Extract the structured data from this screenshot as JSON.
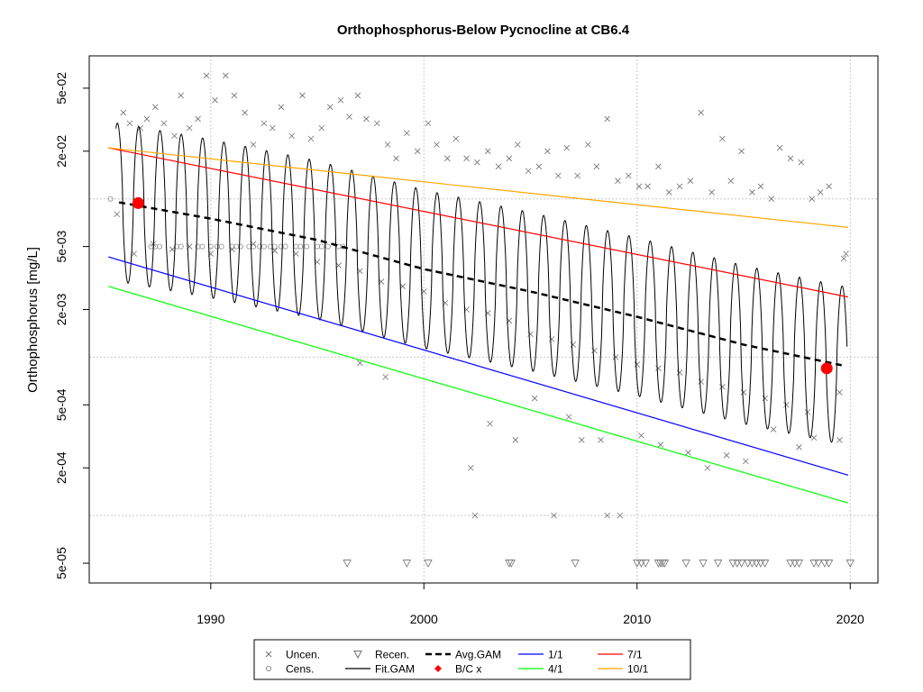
{
  "chart_data": {
    "type": "line",
    "title": "Orthophosphorus-Below Pycnocline at CB6.4",
    "xlabel": "",
    "ylabel": "Orthophosphorus [mg/L]",
    "y_scale": "log",
    "xlim": [
      1984.3,
      2021.3
    ],
    "ylim": [
      3.75e-05,
      0.08
    ],
    "x_ticks": [
      1990,
      2000,
      2010,
      2020
    ],
    "x_tick_labels": [
      "1990",
      "2000",
      "2010",
      "2020"
    ],
    "y_ticks": [
      5e-05,
      0.0002,
      0.0005,
      0.002,
      0.005,
      0.02,
      0.05
    ],
    "y_tick_labels": [
      "5e-05",
      "2e-04",
      "5e-04",
      "2e-03",
      "5e-03",
      "2e-02",
      "5e-02"
    ],
    "y_grid": [
      0.0001,
      0.001,
      0.01
    ],
    "grid": true,
    "legend_position": "bottom",
    "legend": [
      {
        "label": "Uncen.",
        "kind": "x-marker"
      },
      {
        "label": "Recen.",
        "kind": "triangle-marker"
      },
      {
        "label": "Avg.GAM",
        "kind": "dashed-line"
      },
      {
        "label": "1/1",
        "kind": "line",
        "color": "#0000ff"
      },
      {
        "label": "7/1",
        "kind": "line",
        "color": "#ff0000"
      },
      {
        "label": "Cens.",
        "kind": "circle-marker"
      },
      {
        "label": "Fit.GAM",
        "kind": "line",
        "color": "#000000"
      },
      {
        "label": "B/C x",
        "kind": "dot-marker",
        "color": "#ff0000"
      },
      {
        "label": "4/1",
        "kind": "line",
        "color": "#00ff00"
      },
      {
        "label": "10/1",
        "kind": "line",
        "color": "#ffa500"
      }
    ],
    "series": [
      {
        "name": "1/1",
        "color": "#0000ff",
        "x": [
          1985.2,
          2019.9
        ],
        "y": [
          0.0043,
          0.00018
        ]
      },
      {
        "name": "4/1",
        "color": "#00ff00",
        "x": [
          1985.2,
          2019.9
        ],
        "y": [
          0.0028,
          0.00012
        ]
      },
      {
        "name": "7/1",
        "color": "#ff0000",
        "x": [
          1985.2,
          2019.9
        ],
        "y": [
          0.021,
          0.0024
        ]
      },
      {
        "name": "10/1",
        "color": "#ffa500",
        "x": [
          1985.2,
          2019.9
        ],
        "y": [
          0.021,
          0.0066
        ]
      },
      {
        "name": "Avg.GAM",
        "color": "#000000",
        "x": [
          1985.7,
          1990,
          1995,
          2000,
          2005,
          2010,
          2015,
          2019.6
        ],
        "y": [
          0.0095,
          0.0075,
          0.0055,
          0.0036,
          0.0026,
          0.0018,
          0.0012,
          0.00089
        ]
      },
      {
        "name": "Fit.GAM",
        "color": "#000000",
        "description": "seasonal oscillation: annual peak ~3.2x Avg.GAM in late summer, trough ~0.32x Avg.GAM in spring"
      },
      {
        "name": "B/C x",
        "color": "#ff0000",
        "x": [
          1986.6,
          2018.9
        ],
        "y": [
          0.0094,
          0.00085
        ]
      }
    ],
    "uncensored_points": [
      [
        1985.9,
        0.035
      ],
      [
        1986.2,
        0.03
      ],
      [
        1986.7,
        0.028
      ],
      [
        1987.0,
        0.032
      ],
      [
        1987.4,
        0.038
      ],
      [
        1987.8,
        0.03
      ],
      [
        1988.3,
        0.025
      ],
      [
        1988.6,
        0.045
      ],
      [
        1989.0,
        0.028
      ],
      [
        1989.4,
        0.032
      ],
      [
        1989.8,
        0.06
      ],
      [
        1990.2,
        0.042
      ],
      [
        1990.7,
        0.06
      ],
      [
        1991.1,
        0.045
      ],
      [
        1991.6,
        0.035
      ],
      [
        1992.0,
        0.022
      ],
      [
        1992.5,
        0.03
      ],
      [
        1992.9,
        0.028
      ],
      [
        1993.3,
        0.038
      ],
      [
        1993.8,
        0.025
      ],
      [
        1994.3,
        0.045
      ],
      [
        1994.7,
        0.024
      ],
      [
        1995.2,
        0.028
      ],
      [
        1995.6,
        0.038
      ],
      [
        1996.1,
        0.042
      ],
      [
        1996.5,
        0.033
      ],
      [
        1996.9,
        0.045
      ],
      [
        1997.3,
        0.032
      ],
      [
        1997.8,
        0.03
      ],
      [
        1998.3,
        0.022
      ],
      [
        1998.7,
        0.018
      ],
      [
        1999.2,
        0.026
      ],
      [
        1999.7,
        0.02
      ],
      [
        2000.2,
        0.03
      ],
      [
        2000.6,
        0.022
      ],
      [
        2001.1,
        0.018
      ],
      [
        2001.5,
        0.024
      ],
      [
        2002.0,
        0.018
      ],
      [
        2002.5,
        0.017
      ],
      [
        2003.0,
        0.02
      ],
      [
        2003.5,
        0.016
      ],
      [
        2004.0,
        0.018
      ],
      [
        2004.4,
        0.022
      ],
      [
        2004.9,
        0.015
      ],
      [
        2005.4,
        0.016
      ],
      [
        2005.8,
        0.02
      ],
      [
        2006.3,
        0.014
      ],
      [
        2006.7,
        0.021
      ],
      [
        2007.2,
        0.014
      ],
      [
        2007.7,
        0.022
      ],
      [
        2008.1,
        0.016
      ],
      [
        2008.6,
        0.032
      ],
      [
        2009.1,
        0.013
      ],
      [
        2009.6,
        0.014
      ],
      [
        2010.1,
        0.012
      ],
      [
        2010.5,
        0.012
      ],
      [
        2011.0,
        0.016
      ],
      [
        2011.5,
        0.011
      ],
      [
        2012.0,
        0.012
      ],
      [
        2012.5,
        0.013
      ],
      [
        2013.0,
        0.035
      ],
      [
        2013.5,
        0.011
      ],
      [
        2014.0,
        0.024
      ],
      [
        2014.4,
        0.013
      ],
      [
        2014.9,
        0.02
      ],
      [
        2015.4,
        0.011
      ],
      [
        2015.8,
        0.012
      ],
      [
        2016.3,
        0.01
      ],
      [
        2016.7,
        0.021
      ],
      [
        2017.2,
        0.018
      ],
      [
        2017.7,
        0.017
      ],
      [
        2018.2,
        0.01
      ],
      [
        2018.6,
        0.011
      ],
      [
        2019.0,
        0.012
      ],
      [
        1985.6,
        0.008
      ],
      [
        1986.4,
        0.0045
      ],
      [
        1987.3,
        0.0052
      ],
      [
        1988.2,
        0.0048
      ],
      [
        1989.0,
        0.005
      ],
      [
        1990.0,
        0.0045
      ],
      [
        1991.0,
        0.0048
      ],
      [
        1992.0,
        0.0052
      ],
      [
        1993.0,
        0.0047
      ],
      [
        1994.0,
        0.0045
      ],
      [
        1995.0,
        0.004
      ],
      [
        1996.0,
        0.0038
      ],
      [
        1997.0,
        0.0035
      ],
      [
        1998.0,
        0.003
      ],
      [
        1999.0,
        0.0028
      ],
      [
        2000.0,
        0.0026
      ],
      [
        2001.0,
        0.0022
      ],
      [
        2002.0,
        0.002
      ],
      [
        2003.0,
        0.0019
      ],
      [
        2004.0,
        0.0017
      ],
      [
        2005.0,
        0.0014
      ],
      [
        2006.0,
        0.0013
      ],
      [
        2007.0,
        0.0012
      ],
      [
        2008.0,
        0.0011
      ],
      [
        2009.0,
        0.001
      ],
      [
        2010.0,
        0.0009
      ],
      [
        2011.0,
        0.00085
      ],
      [
        2012.0,
        0.0008
      ],
      [
        2013.0,
        0.0007
      ],
      [
        2014.0,
        0.00065
      ],
      [
        2015.0,
        0.0006
      ],
      [
        2016.0,
        0.00055
      ],
      [
        2017.0,
        0.0005
      ],
      [
        2018.0,
        0.00045
      ],
      [
        2019.5,
        0.0006
      ],
      [
        1997.0,
        0.00092
      ],
      [
        1998.2,
        0.00075
      ],
      [
        2002.2,
        0.0002
      ],
      [
        2002.4,
        0.0001
      ],
      [
        2003.1,
        0.00038
      ],
      [
        2004.3,
        0.0003
      ],
      [
        2005.2,
        0.00055
      ],
      [
        2006.1,
        0.0001
      ],
      [
        2006.8,
        0.00042
      ],
      [
        2007.4,
        0.0003
      ],
      [
        2008.3,
        0.0003
      ],
      [
        2008.6,
        0.0001
      ],
      [
        2009.2,
        0.0001
      ],
      [
        2010.2,
        0.00032
      ],
      [
        2011.1,
        0.00028
      ],
      [
        2012.4,
        0.00025
      ],
      [
        2013.3,
        0.0002
      ],
      [
        2014.2,
        0.00024
      ],
      [
        2015.1,
        0.00022
      ],
      [
        2016.4,
        0.00035
      ],
      [
        2017.6,
        0.00027
      ],
      [
        2018.3,
        0.00031
      ],
      [
        2019.5,
        0.0003
      ],
      [
        2019.7,
        0.0042
      ],
      [
        2019.8,
        0.0045
      ]
    ],
    "censored_points": [
      [
        1985.3,
        0.01
      ],
      [
        1987.2,
        0.005
      ],
      [
        1987.4,
        0.005
      ],
      [
        1987.6,
        0.005
      ],
      [
        1988.4,
        0.005
      ],
      [
        1988.6,
        0.005
      ],
      [
        1989.4,
        0.005
      ],
      [
        1989.6,
        0.005
      ],
      [
        1990.0,
        0.005
      ],
      [
        1990.3,
        0.005
      ],
      [
        1990.5,
        0.005
      ],
      [
        1991.0,
        0.005
      ],
      [
        1991.2,
        0.005
      ],
      [
        1991.4,
        0.005
      ],
      [
        1991.8,
        0.005
      ],
      [
        1992.0,
        0.005
      ],
      [
        1992.3,
        0.005
      ],
      [
        1992.5,
        0.005
      ],
      [
        1992.8,
        0.005
      ],
      [
        1993.0,
        0.005
      ],
      [
        1993.3,
        0.005
      ],
      [
        1993.5,
        0.005
      ],
      [
        1994.0,
        0.005
      ],
      [
        1994.2,
        0.005
      ],
      [
        1994.5,
        0.005
      ],
      [
        1995.0,
        0.005
      ],
      [
        1995.2,
        0.005
      ],
      [
        1995.5,
        0.005
      ],
      [
        1996.0,
        0.005
      ],
      [
        1996.2,
        0.005
      ]
    ],
    "recensored_points": [
      1996.4,
      1999.2,
      2000.2,
      2004.0,
      2004.1,
      2007.1,
      2010.0,
      2010.2,
      2010.4,
      2011.0,
      2011.1,
      2011.2,
      2011.3,
      2012.3,
      2013.1,
      2013.8,
      2014.5,
      2014.7,
      2014.9,
      2015.2,
      2015.4,
      2015.6,
      2015.8,
      2016.0,
      2017.2,
      2017.4,
      2017.6,
      2018.3,
      2018.5,
      2018.8,
      2019.0,
      2020.0
    ]
  }
}
